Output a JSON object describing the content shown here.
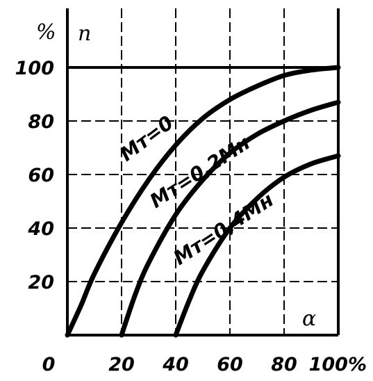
{
  "chart_data": {
    "type": "line",
    "title": "",
    "ylabel": "n",
    "yunit": "%",
    "xlabel": "α",
    "xunit": "%",
    "xlim": [
      0,
      100
    ],
    "ylim": [
      0,
      100
    ],
    "x_ticks": [
      "0",
      "20",
      "40",
      "60",
      "80",
      "100%"
    ],
    "y_ticks": [
      "20",
      "40",
      "60",
      "80",
      "100"
    ],
    "grid": true,
    "series": [
      {
        "name": "Mт=0",
        "x": [
          0,
          5,
          10,
          20,
          30,
          40,
          50,
          60,
          70,
          80,
          90,
          100
        ],
        "y": [
          0,
          11,
          23,
          42,
          58,
          71,
          81,
          88,
          93,
          97,
          99,
          100
        ]
      },
      {
        "name": "Mт=0,2Mн",
        "x": [
          20,
          25,
          30,
          40,
          50,
          60,
          70,
          80,
          90,
          100
        ],
        "y": [
          0,
          15,
          27,
          45,
          58,
          68,
          75,
          80,
          84,
          87
        ]
      },
      {
        "name": "Mт=0,4Mн",
        "x": [
          40,
          45,
          50,
          60,
          70,
          80,
          90,
          100
        ],
        "y": [
          0,
          13,
          24,
          40,
          51,
          59,
          64,
          67
        ]
      }
    ]
  }
}
